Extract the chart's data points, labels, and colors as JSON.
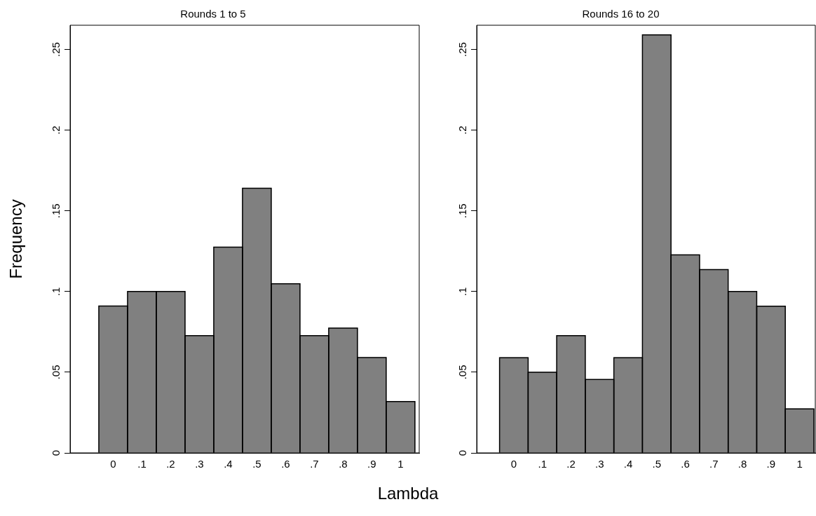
{
  "chart_data": [
    {
      "type": "histogram",
      "title": "Rounds 1 to 5",
      "xlabel": "Lambda",
      "ylabel": "Frequency",
      "color": "#808080",
      "bins": [
        -0.05,
        0.05,
        0.15,
        0.25,
        0.35,
        0.45,
        0.55,
        0.65,
        0.75,
        0.85,
        0.95,
        1.05
      ],
      "values": [
        0.091,
        0.1,
        0.1,
        0.0727,
        0.1275,
        0.164,
        0.1048,
        0.0727,
        0.0773,
        0.0591,
        0.0318
      ],
      "xlim": [
        -0.15,
        1.065
      ],
      "xticks": [
        {
          "value": 0,
          "label": "0"
        },
        {
          "value": 0.1,
          "label": ".1"
        },
        {
          "value": 0.2,
          "label": ".2"
        },
        {
          "value": 0.3,
          "label": ".3"
        },
        {
          "value": 0.4,
          "label": ".4"
        },
        {
          "value": 0.5,
          "label": ".5"
        },
        {
          "value": 0.6,
          "label": ".6"
        },
        {
          "value": 0.7,
          "label": ".7"
        },
        {
          "value": 0.8,
          "label": ".8"
        },
        {
          "value": 0.9,
          "label": ".9"
        },
        1
      ],
      "ylim": [
        0,
        0.265
      ],
      "yticks": [
        {
          "value": 0,
          "label": "0"
        },
        {
          "value": 0.05,
          "label": ".05"
        },
        {
          "value": 0.1,
          "label": ".1"
        },
        {
          "value": 0.15,
          "label": ".15"
        },
        {
          "value": 0.2,
          "label": ".2"
        },
        {
          "value": 0.25,
          "label": ".25"
        }
      ],
      "grid": false,
      "legend": false
    },
    {
      "type": "histogram",
      "title": "Rounds 16 to 20",
      "color": "#808080",
      "bins": [
        -0.05,
        0.05,
        0.15,
        0.25,
        0.35,
        0.45,
        0.55,
        0.65,
        0.75,
        0.85,
        0.95,
        1.05
      ],
      "values": [
        0.059,
        0.05,
        0.0727,
        0.0455,
        0.059,
        0.259,
        0.1227,
        0.1136,
        0.1,
        0.0909,
        0.0273
      ],
      "xlim": [
        -0.13,
        1.055
      ],
      "xticks": [
        {
          "value": 0,
          "label": "0"
        },
        {
          "value": 0.1,
          "label": ".1"
        },
        {
          "value": 0.2,
          "label": ".2"
        },
        {
          "value": 0.3,
          "label": ".3"
        },
        {
          "value": 0.4,
          "label": ".4"
        },
        {
          "value": 0.5,
          "label": ".5"
        },
        {
          "value": 0.6,
          "label": ".6"
        },
        {
          "value": 0.7,
          "label": ".7"
        },
        {
          "value": 0.8,
          "label": ".8"
        },
        {
          "value": 0.9,
          "label": ".9"
        },
        1
      ],
      "ylim": [
        0,
        0.265
      ],
      "yticks": [
        {
          "value": 0,
          "label": "0"
        },
        {
          "value": 0.05,
          "label": ".05"
        },
        {
          "value": 0.1,
          "label": ".1"
        },
        {
          "value": 0.15,
          "label": ".15"
        },
        {
          "value": 0.2,
          "label": ".2"
        },
        {
          "value": 0.25,
          "label": ".25"
        }
      ],
      "grid": false,
      "legend": false
    }
  ]
}
